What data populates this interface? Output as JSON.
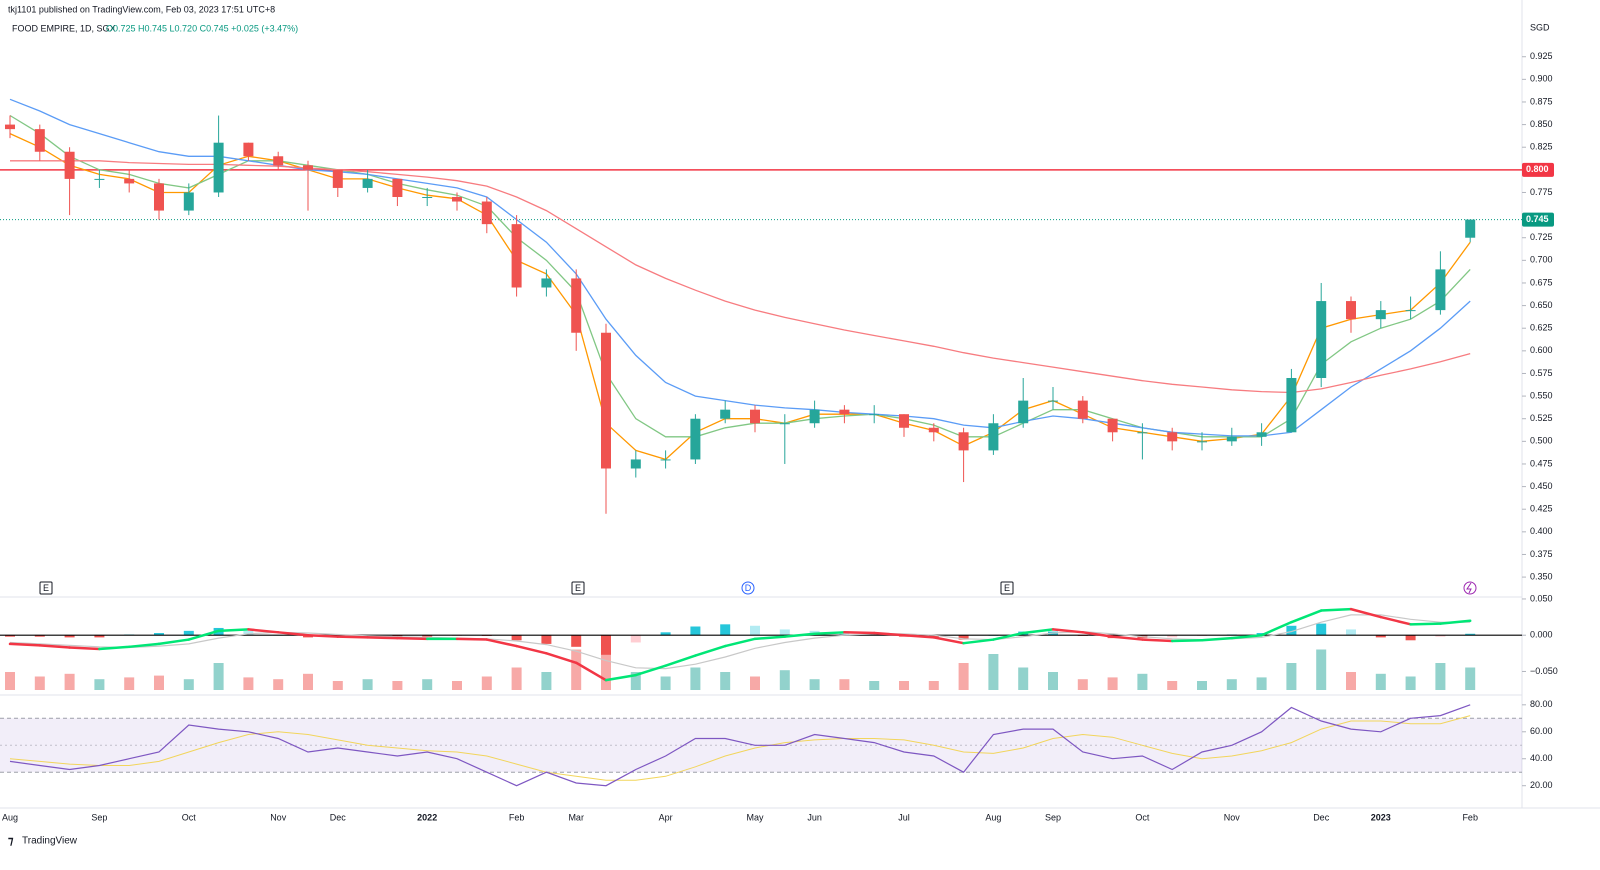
{
  "header": {
    "published": "tkj1101 published on TradingView.com, Feb 03, 2023 17:51 UTC+8",
    "symbol": "FOOD EMPIRE, 1D, SGX",
    "ohlc": "O0.725 H0.745 L0.720 C0.745 +0.025 (+3.47%)",
    "currency": "SGD",
    "events": [
      "E",
      "E",
      "D",
      "E"
    ],
    "brand": "TradingView"
  },
  "chart_data": [
    {
      "type": "candlestick",
      "categories": [
        "Aug",
        null,
        null,
        "Sep",
        null,
        null,
        "Oct",
        null,
        null,
        "Nov",
        null,
        "Dec",
        null,
        null,
        "2022",
        null,
        null,
        "Feb",
        null,
        "Mar",
        null,
        null,
        "Apr",
        null,
        null,
        "May",
        null,
        "Jun",
        null,
        null,
        "Jul",
        null,
        null,
        "Aug",
        null,
        "Sep",
        null,
        null,
        "Oct",
        null,
        null,
        "Nov",
        null,
        null,
        "Dec",
        null,
        "2023",
        null,
        null,
        "Feb"
      ],
      "open": [
        0.85,
        0.845,
        0.82,
        0.79,
        0.79,
        0.785,
        0.755,
        0.775,
        0.83,
        0.815,
        0.805,
        0.8,
        0.78,
        0.79,
        0.77,
        0.77,
        0.765,
        0.74,
        0.67,
        0.68,
        0.62,
        0.47,
        0.48,
        0.48,
        0.525,
        0.535,
        0.52,
        0.52,
        0.535,
        0.53,
        0.53,
        0.515,
        0.51,
        0.49,
        0.52,
        0.545,
        0.545,
        0.525,
        0.51,
        0.51,
        0.5,
        0.5,
        0.505,
        0.51,
        0.57,
        0.655,
        0.635,
        0.645,
        0.645,
        0.725
      ],
      "high": [
        0.86,
        0.85,
        0.825,
        0.8,
        0.8,
        0.79,
        0.785,
        0.86,
        0.83,
        0.82,
        0.81,
        0.8,
        0.8,
        0.79,
        0.78,
        0.775,
        0.77,
        0.75,
        0.69,
        0.69,
        0.63,
        0.49,
        0.49,
        0.53,
        0.545,
        0.54,
        0.53,
        0.545,
        0.54,
        0.54,
        0.53,
        0.52,
        0.515,
        0.53,
        0.57,
        0.56,
        0.55,
        0.525,
        0.52,
        0.515,
        0.51,
        0.515,
        0.52,
        0.58,
        0.675,
        0.66,
        0.655,
        0.66,
        0.71,
        0.745
      ],
      "low": [
        0.835,
        0.81,
        0.75,
        0.78,
        0.775,
        0.745,
        0.75,
        0.77,
        0.81,
        0.8,
        0.755,
        0.77,
        0.775,
        0.76,
        0.76,
        0.755,
        0.73,
        0.66,
        0.66,
        0.6,
        0.42,
        0.46,
        0.47,
        0.475,
        0.52,
        0.51,
        0.475,
        0.515,
        0.52,
        0.52,
        0.505,
        0.5,
        0.455,
        0.485,
        0.515,
        0.535,
        0.52,
        0.5,
        0.48,
        0.49,
        0.49,
        0.495,
        0.495,
        0.51,
        0.56,
        0.62,
        0.625,
        0.635,
        0.64,
        0.72
      ],
      "close": [
        0.845,
        0.82,
        0.79,
        0.79,
        0.785,
        0.755,
        0.775,
        0.83,
        0.815,
        0.805,
        0.8,
        0.78,
        0.79,
        0.77,
        0.77,
        0.765,
        0.74,
        0.67,
        0.68,
        0.62,
        0.47,
        0.48,
        0.48,
        0.525,
        0.535,
        0.52,
        0.52,
        0.535,
        0.53,
        0.53,
        0.515,
        0.51,
        0.49,
        0.52,
        0.545,
        0.545,
        0.525,
        0.51,
        0.51,
        0.5,
        0.5,
        0.505,
        0.51,
        0.57,
        0.655,
        0.635,
        0.645,
        0.645,
        0.69,
        0.745
      ],
      "up_color": "#26a69a",
      "down_color": "#ef5350",
      "series": [
        {
          "color": "#ff9800",
          "values": [
            0.84,
            0.825,
            0.805,
            0.795,
            0.79,
            0.775,
            0.775,
            0.805,
            0.815,
            0.81,
            0.8,
            0.79,
            0.79,
            0.78,
            0.772,
            0.768,
            0.75,
            0.7,
            0.685,
            0.64,
            0.52,
            0.49,
            0.48,
            0.51,
            0.525,
            0.525,
            0.52,
            0.53,
            0.53,
            0.53,
            0.52,
            0.512,
            0.495,
            0.51,
            0.535,
            0.545,
            0.53,
            0.515,
            0.51,
            0.505,
            0.5,
            0.503,
            0.508,
            0.55,
            0.625,
            0.635,
            0.64,
            0.645,
            0.675,
            0.72
          ]
        },
        {
          "color": "#81c784",
          "values": [
            0.86,
            0.84,
            0.815,
            0.8,
            0.795,
            0.785,
            0.78,
            0.795,
            0.81,
            0.81,
            0.805,
            0.8,
            0.795,
            0.785,
            0.778,
            0.772,
            0.76,
            0.725,
            0.7,
            0.665,
            0.575,
            0.525,
            0.505,
            0.505,
            0.515,
            0.52,
            0.52,
            0.525,
            0.528,
            0.53,
            0.525,
            0.518,
            0.505,
            0.505,
            0.52,
            0.535,
            0.535,
            0.525,
            0.515,
            0.51,
            0.505,
            0.505,
            0.505,
            0.525,
            0.585,
            0.61,
            0.625,
            0.635,
            0.655,
            0.69
          ]
        },
        {
          "color": "#5b9cf6",
          "values": [
            0.878,
            0.865,
            0.85,
            0.84,
            0.83,
            0.82,
            0.815,
            0.815,
            0.81,
            0.805,
            0.8,
            0.798,
            0.795,
            0.79,
            0.785,
            0.78,
            0.77,
            0.745,
            0.72,
            0.685,
            0.635,
            0.595,
            0.565,
            0.55,
            0.545,
            0.54,
            0.537,
            0.535,
            0.532,
            0.53,
            0.528,
            0.525,
            0.518,
            0.515,
            0.522,
            0.528,
            0.525,
            0.52,
            0.515,
            0.51,
            0.508,
            0.506,
            0.506,
            0.51,
            0.535,
            0.56,
            0.58,
            0.6,
            0.625,
            0.655
          ]
        },
        {
          "color": "#f77c80",
          "values": [
            0.81,
            0.81,
            0.81,
            0.81,
            0.808,
            0.807,
            0.806,
            0.806,
            0.805,
            0.804,
            0.802,
            0.8,
            0.798,
            0.795,
            0.792,
            0.788,
            0.782,
            0.77,
            0.755,
            0.735,
            0.715,
            0.695,
            0.68,
            0.667,
            0.655,
            0.645,
            0.637,
            0.63,
            0.623,
            0.617,
            0.611,
            0.605,
            0.598,
            0.592,
            0.587,
            0.582,
            0.577,
            0.572,
            0.567,
            0.563,
            0.56,
            0.557,
            0.555,
            0.554,
            0.558,
            0.565,
            0.573,
            0.58,
            0.588,
            0.597
          ]
        }
      ],
      "hline": {
        "value": 0.8,
        "label": "0.800",
        "color": "#f23645"
      },
      "last_price": {
        "value": 0.745,
        "label": "0.745",
        "color": "#089981"
      },
      "ylim": [
        0.328,
        0.949
      ],
      "yticks": [
        {
          "value": 0.35,
          "label": "0.350"
        },
        0.375,
        {
          "value": 0.4,
          "label": "0.400"
        },
        0.425,
        {
          "value": 0.45,
          "label": "0.450"
        },
        0.475,
        {
          "value": 0.5,
          "label": "0.500"
        },
        0.525,
        {
          "value": 0.55,
          "label": "0.550"
        },
        0.575,
        {
          "value": 0.6,
          "label": "0.600"
        },
        0.625,
        {
          "value": 0.65,
          "label": "0.650"
        },
        0.675,
        {
          "value": 0.7,
          "label": "0.700"
        },
        0.725,
        0.775,
        0.825,
        {
          "value": 0.85,
          "label": "0.850"
        },
        0.875,
        {
          "value": 0.9,
          "label": "0.900"
        },
        0.925
      ]
    },
    {
      "type": "macd",
      "macd": [
        -0.012,
        -0.014,
        -0.017,
        -0.019,
        -0.016,
        -0.012,
        -0.006,
        0.006,
        0.008,
        0.004,
        0.0,
        -0.002,
        -0.003,
        -0.004,
        -0.005,
        -0.005,
        -0.006,
        -0.015,
        -0.025,
        -0.038,
        -0.062,
        -0.055,
        -0.042,
        -0.028,
        -0.015,
        -0.005,
        -0.002,
        0.002,
        0.004,
        0.003,
        0.0,
        -0.003,
        -0.011,
        -0.006,
        0.003,
        0.008,
        0.004,
        -0.002,
        -0.006,
        -0.008,
        -0.007,
        -0.004,
        0.0,
        0.018,
        0.034,
        0.036,
        0.025,
        0.015,
        0.016,
        0.02
      ],
      "signal": [
        -0.01,
        -0.012,
        -0.014,
        -0.016,
        -0.017,
        -0.015,
        -0.012,
        -0.004,
        0.002,
        0.004,
        0.003,
        0.001,
        -0.001,
        -0.002,
        -0.003,
        -0.004,
        -0.005,
        -0.008,
        -0.013,
        -0.022,
        -0.035,
        -0.045,
        -0.046,
        -0.04,
        -0.03,
        -0.018,
        -0.01,
        -0.004,
        0.0,
        0.002,
        0.002,
        0.0,
        -0.005,
        -0.006,
        -0.002,
        0.003,
        0.005,
        0.002,
        -0.002,
        -0.005,
        -0.006,
        -0.005,
        -0.003,
        0.005,
        0.018,
        0.028,
        0.028,
        0.022,
        0.018,
        0.018
      ],
      "histogram": [
        -0.002,
        -0.002,
        -0.003,
        -0.003,
        0.001,
        0.003,
        0.006,
        0.01,
        0.006,
        0,
        -0.003,
        -0.003,
        -0.002,
        -0.002,
        -0.002,
        -0.001,
        -0.001,
        -0.007,
        -0.012,
        -0.016,
        -0.027,
        -0.01,
        0.004,
        0.012,
        0.015,
        0.013,
        0.008,
        0.006,
        0.004,
        0.001,
        -0.002,
        -0.003,
        -0.006,
        0,
        0.005,
        0.005,
        -0.001,
        -0.004,
        -0.004,
        -0.003,
        -0.001,
        0.001,
        0.003,
        0.013,
        0.016,
        0.008,
        -0.003,
        -0.007,
        -0.002,
        0.002
      ],
      "volume": [
        20,
        15,
        18,
        12,
        14,
        16,
        12,
        30,
        14,
        12,
        18,
        10,
        12,
        10,
        12,
        10,
        15,
        25,
        20,
        45,
        50,
        20,
        15,
        25,
        20,
        15,
        22,
        12,
        12,
        10,
        10,
        10,
        30,
        40,
        25,
        20,
        12,
        14,
        18,
        10,
        10,
        12,
        14,
        30,
        45,
        20,
        18,
        15,
        30,
        25
      ],
      "rising_color": "#00e676",
      "falling_color": "#f23645",
      "signal_color": "#c8c8c8",
      "ylim": [
        -0.0797,
        0.0527
      ],
      "yticks": [
        {
          "value": 0.05,
          "label": "0.050"
        },
        {
          "value": 0,
          "label": "0.000"
        },
        {
          "value": -0.05,
          "label": "−0.050"
        }
      ]
    },
    {
      "type": "rsi",
      "values": [
        38,
        35,
        32,
        35,
        40,
        45,
        65,
        62,
        60,
        55,
        45,
        48,
        45,
        42,
        45,
        40,
        30,
        20,
        30,
        22,
        20,
        32,
        42,
        55,
        55,
        50,
        50,
        58,
        55,
        52,
        45,
        42,
        30,
        58,
        62,
        62,
        45,
        40,
        42,
        32,
        45,
        50,
        60,
        78,
        68,
        62,
        60,
        70,
        72,
        80
      ],
      "ma": [
        40,
        38,
        36,
        35,
        35,
        38,
        45,
        52,
        58,
        60,
        58,
        54,
        50,
        48,
        46,
        45,
        42,
        36,
        30,
        27,
        24,
        24,
        27,
        34,
        42,
        48,
        52,
        54,
        55,
        55,
        54,
        50,
        45,
        44,
        48,
        55,
        58,
        56,
        50,
        44,
        40,
        42,
        46,
        52,
        62,
        68,
        68,
        66,
        66,
        72
      ],
      "color": "#7e57c2",
      "ma_color": "#f2d55c",
      "bands": [
        70,
        50,
        30
      ],
      "ylim": [
        9.4,
        85.8
      ],
      "yticks": [
        {
          "value": 80,
          "label": "80.00"
        },
        {
          "value": 60,
          "label": "60.00"
        },
        {
          "value": 40,
          "label": "40.00"
        },
        {
          "value": 20,
          "label": "20.00"
        }
      ]
    }
  ]
}
